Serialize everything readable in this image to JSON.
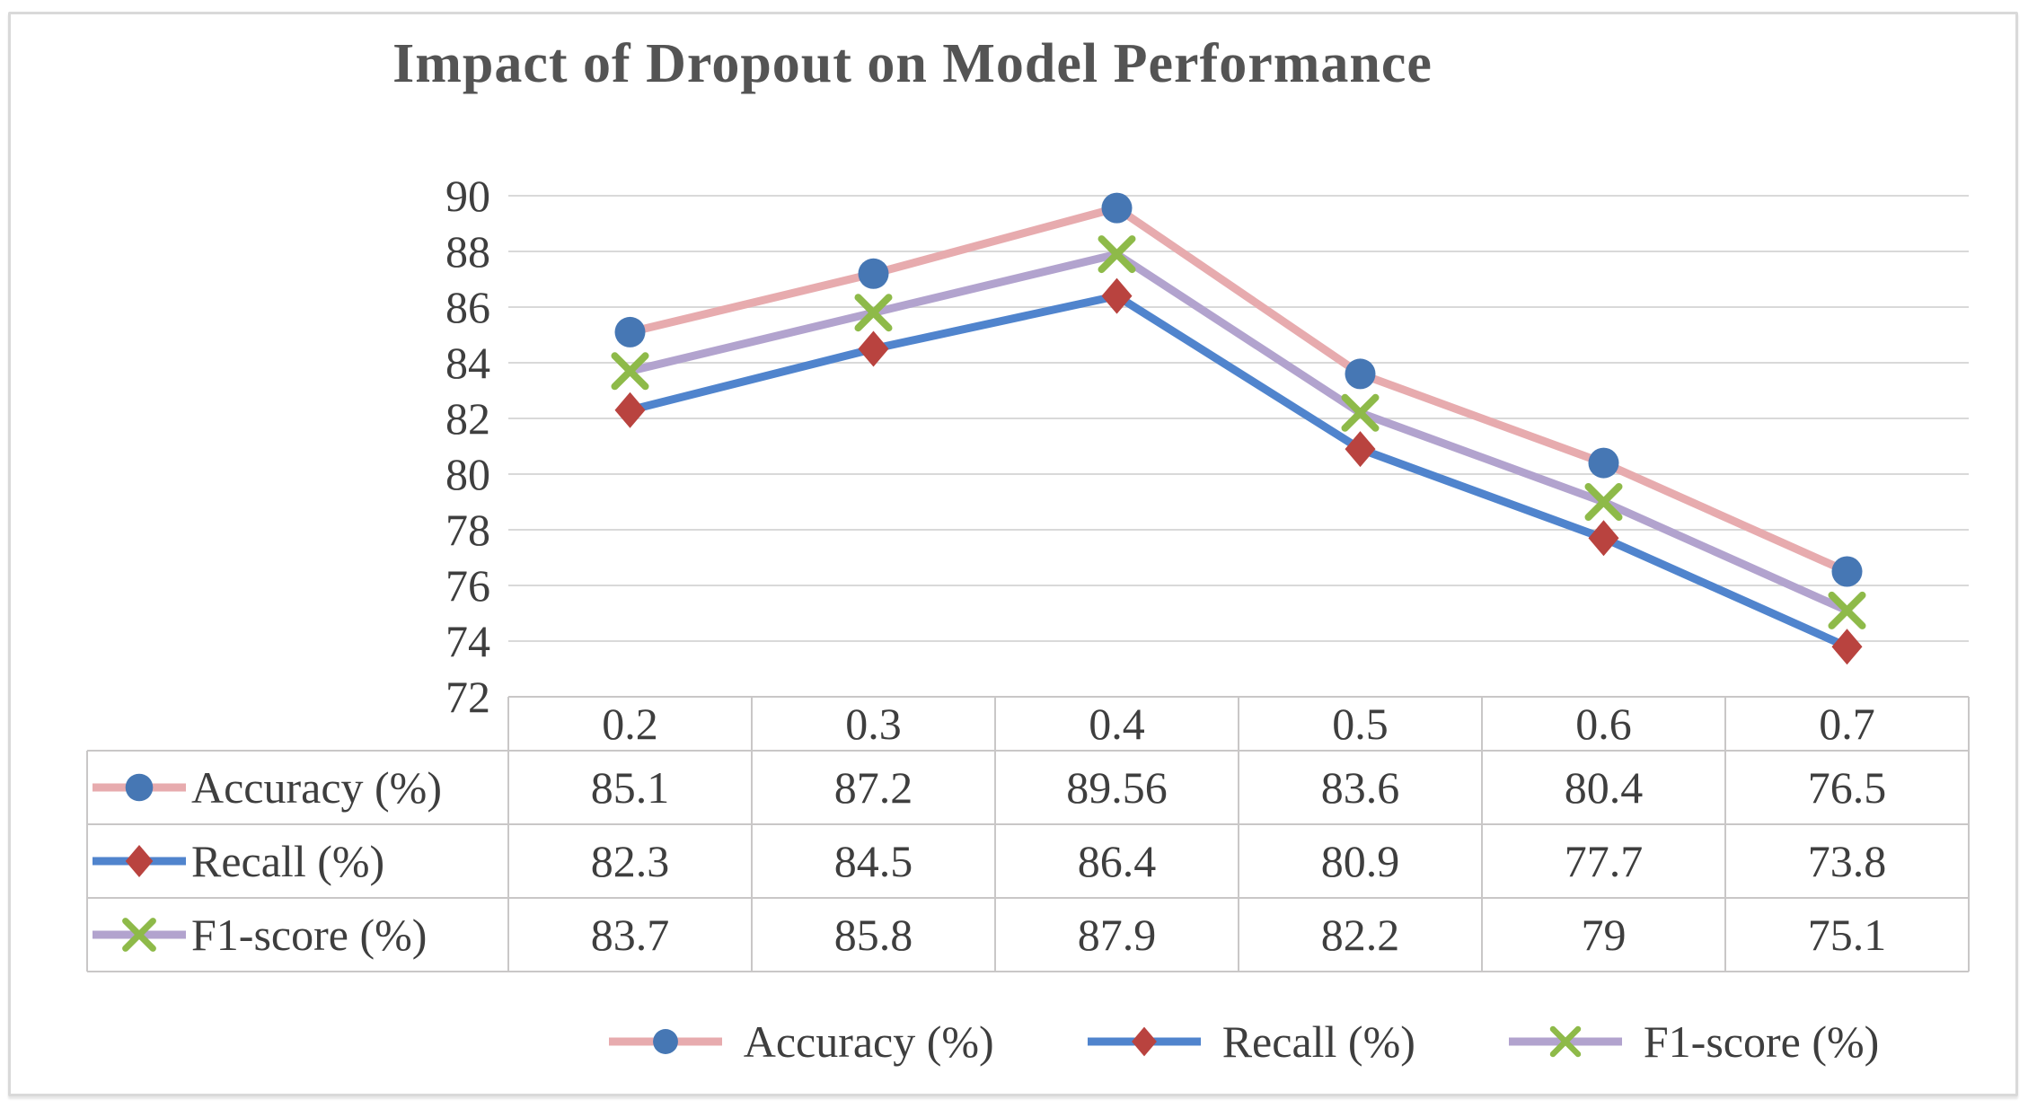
{
  "figure": {
    "title": "Impact of Dropout on Model Performance"
  },
  "chart_data": {
    "type": "line",
    "title": "Impact of Dropout on Model Performance",
    "categories": [
      "0.2",
      "0.3",
      "0.4",
      "0.5",
      "0.6",
      "0.7"
    ],
    "series": [
      {
        "id": "accuracy",
        "name": "Accuracy（%）",
        "values": [
          85.1,
          87.2,
          89.56,
          83.6,
          80.4,
          76.5
        ],
        "line_color": "#e7abae",
        "marker_color": "#4677b4",
        "marker": "circle"
      },
      {
        "id": "recall",
        "name": "Recall（%）",
        "values": [
          82.3,
          84.5,
          86.4,
          80.9,
          77.7,
          73.8
        ],
        "line_color": "#5084cd",
        "marker_color": "#b9433f",
        "marker": "diamond"
      },
      {
        "id": "f1-score",
        "name": "F1-score（%）",
        "values": [
          83.7,
          85.8,
          87.9,
          82.2,
          79,
          75.1
        ],
        "line_color": "#b2a3ce",
        "marker_color": "#8eba49",
        "marker": "x"
      }
    ],
    "ylim": [
      72,
      90
    ],
    "yticks": [
      90,
      88,
      86,
      84,
      82,
      80,
      78,
      76,
      74,
      72
    ],
    "grid": "horizontal",
    "legend_position": "bottom",
    "data_table_shown": true
  },
  "colors": {
    "grid": "#d9d9d9",
    "table_border": "#c9c7c7",
    "text": "#3e3e3e",
    "title": "#545454",
    "frame_border": "#d9d9d9",
    "background": "#ffffff"
  }
}
